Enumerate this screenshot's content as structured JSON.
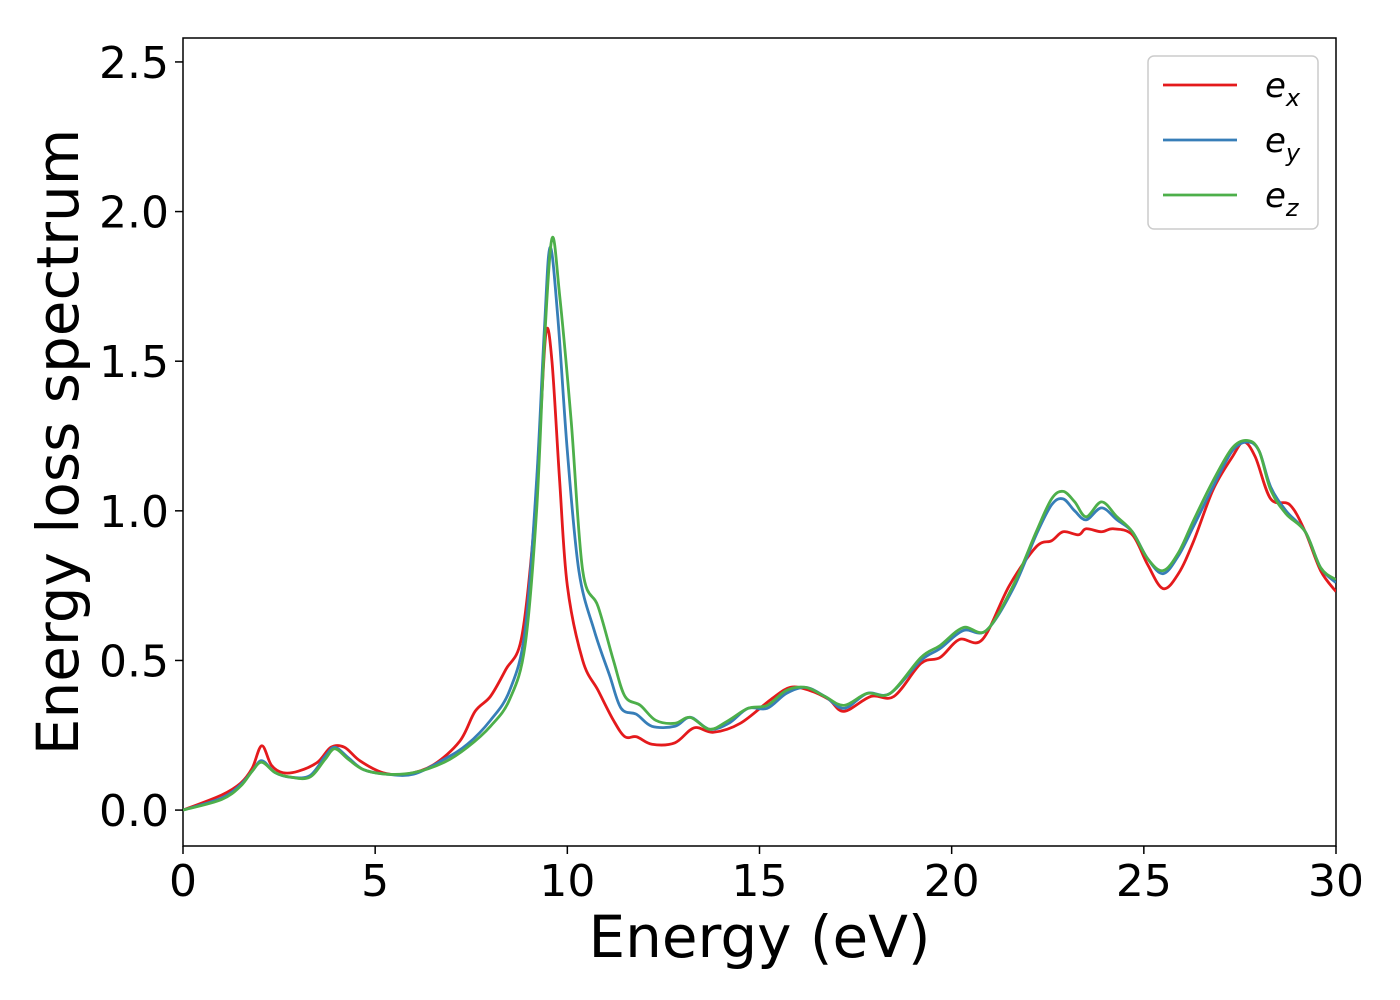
{
  "chart_data": {
    "type": "line",
    "xlabel": "Energy (eV)",
    "ylabel": "Energy loss spectrum",
    "xlim": [
      0,
      30
    ],
    "ylim": [
      -0.12,
      2.58
    ],
    "xticks": [
      0,
      5,
      10,
      15,
      20,
      25,
      30
    ],
    "yticks": [
      0.0,
      0.5,
      1.0,
      1.5,
      2.0,
      2.5
    ],
    "xtick_labels": [
      "0",
      "5",
      "10",
      "15",
      "20",
      "25",
      "30"
    ],
    "ytick_labels": [
      "0.0",
      "0.5",
      "1.0",
      "1.5",
      "2.0",
      "2.5"
    ],
    "grid": false,
    "legend_position": "top-right",
    "series": [
      {
        "name": "e_x",
        "label_base": "e",
        "label_sub": "x",
        "color": "#e41a1c",
        "points": [
          [
            0,
            0
          ],
          [
            1,
            0.05
          ],
          [
            1.5,
            0.09
          ],
          [
            1.8,
            0.14
          ],
          [
            2.05,
            0.215
          ],
          [
            2.3,
            0.15
          ],
          [
            2.6,
            0.125
          ],
          [
            3,
            0.13
          ],
          [
            3.5,
            0.16
          ],
          [
            3.85,
            0.21
          ],
          [
            4.2,
            0.21
          ],
          [
            4.6,
            0.165
          ],
          [
            5.2,
            0.125
          ],
          [
            5.8,
            0.12
          ],
          [
            6.5,
            0.15
          ],
          [
            7.2,
            0.23
          ],
          [
            7.6,
            0.33
          ],
          [
            8,
            0.38
          ],
          [
            8.4,
            0.47
          ],
          [
            8.8,
            0.57
          ],
          [
            9.1,
            0.9
          ],
          [
            9.3,
            1.3
          ],
          [
            9.45,
            1.6
          ],
          [
            9.6,
            1.5
          ],
          [
            9.8,
            1.1
          ],
          [
            10,
            0.75
          ],
          [
            10.4,
            0.5
          ],
          [
            10.8,
            0.4
          ],
          [
            11.2,
            0.3
          ],
          [
            11.5,
            0.245
          ],
          [
            11.8,
            0.245
          ],
          [
            12.2,
            0.22
          ],
          [
            12.8,
            0.225
          ],
          [
            13.3,
            0.275
          ],
          [
            13.8,
            0.26
          ],
          [
            14.5,
            0.29
          ],
          [
            15.3,
            0.37
          ],
          [
            15.8,
            0.41
          ],
          [
            16.3,
            0.4
          ],
          [
            16.8,
            0.37
          ],
          [
            17.2,
            0.33
          ],
          [
            17.9,
            0.38
          ],
          [
            18.5,
            0.38
          ],
          [
            19.2,
            0.49
          ],
          [
            19.7,
            0.51
          ],
          [
            20.2,
            0.57
          ],
          [
            20.8,
            0.57
          ],
          [
            21.5,
            0.75
          ],
          [
            22.2,
            0.88
          ],
          [
            22.6,
            0.9
          ],
          [
            22.9,
            0.93
          ],
          [
            23.3,
            0.92
          ],
          [
            23.5,
            0.94
          ],
          [
            23.9,
            0.93
          ],
          [
            24.2,
            0.94
          ],
          [
            24.7,
            0.92
          ],
          [
            25.1,
            0.82
          ],
          [
            25.5,
            0.74
          ],
          [
            25.9,
            0.79
          ],
          [
            26.3,
            0.9
          ],
          [
            26.8,
            1.07
          ],
          [
            27.3,
            1.18
          ],
          [
            27.6,
            1.23
          ],
          [
            27.9,
            1.18
          ],
          [
            28.3,
            1.04
          ],
          [
            28.8,
            1.02
          ],
          [
            29.2,
            0.93
          ],
          [
            29.6,
            0.8
          ],
          [
            30,
            0.73
          ]
        ]
      },
      {
        "name": "e_y",
        "label_base": "e",
        "label_sub": "y",
        "color": "#377eb8",
        "points": [
          [
            0,
            0
          ],
          [
            1,
            0.04
          ],
          [
            1.5,
            0.085
          ],
          [
            1.8,
            0.13
          ],
          [
            2.05,
            0.165
          ],
          [
            2.4,
            0.125
          ],
          [
            2.8,
            0.11
          ],
          [
            3.3,
            0.115
          ],
          [
            3.7,
            0.18
          ],
          [
            3.95,
            0.21
          ],
          [
            4.3,
            0.175
          ],
          [
            4.7,
            0.135
          ],
          [
            5.3,
            0.12
          ],
          [
            6,
            0.12
          ],
          [
            6.8,
            0.17
          ],
          [
            7.4,
            0.22
          ],
          [
            8,
            0.3
          ],
          [
            8.5,
            0.4
          ],
          [
            8.9,
            0.6
          ],
          [
            9.2,
            1.1
          ],
          [
            9.4,
            1.6
          ],
          [
            9.55,
            1.88
          ],
          [
            9.75,
            1.65
          ],
          [
            10,
            1.2
          ],
          [
            10.3,
            0.8
          ],
          [
            10.7,
            0.6
          ],
          [
            11.1,
            0.45
          ],
          [
            11.4,
            0.34
          ],
          [
            11.8,
            0.32
          ],
          [
            12.2,
            0.28
          ],
          [
            12.8,
            0.28
          ],
          [
            13.2,
            0.31
          ],
          [
            13.7,
            0.27
          ],
          [
            14.2,
            0.29
          ],
          [
            14.7,
            0.34
          ],
          [
            15.2,
            0.34
          ],
          [
            15.7,
            0.39
          ],
          [
            16.2,
            0.41
          ],
          [
            16.7,
            0.38
          ],
          [
            17.2,
            0.34
          ],
          [
            17.8,
            0.39
          ],
          [
            18.4,
            0.39
          ],
          [
            19.2,
            0.5
          ],
          [
            19.7,
            0.54
          ],
          [
            20.3,
            0.6
          ],
          [
            20.9,
            0.6
          ],
          [
            21.6,
            0.74
          ],
          [
            22.2,
            0.92
          ],
          [
            22.6,
            1.02
          ],
          [
            22.9,
            1.04
          ],
          [
            23.2,
            1.0
          ],
          [
            23.5,
            0.97
          ],
          [
            23.9,
            1.01
          ],
          [
            24.3,
            0.97
          ],
          [
            24.7,
            0.93
          ],
          [
            25.1,
            0.84
          ],
          [
            25.5,
            0.79
          ],
          [
            25.9,
            0.85
          ],
          [
            26.3,
            0.95
          ],
          [
            26.8,
            1.08
          ],
          [
            27.3,
            1.2
          ],
          [
            27.7,
            1.23
          ],
          [
            28,
            1.2
          ],
          [
            28.3,
            1.08
          ],
          [
            28.7,
            1.0
          ],
          [
            29.2,
            0.93
          ],
          [
            29.6,
            0.81
          ],
          [
            30,
            0.76
          ]
        ]
      },
      {
        "name": "e_z",
        "label_base": "e",
        "label_sub": "z",
        "color": "#4daf4a",
        "points": [
          [
            0,
            0
          ],
          [
            1,
            0.035
          ],
          [
            1.5,
            0.08
          ],
          [
            1.8,
            0.13
          ],
          [
            2.05,
            0.16
          ],
          [
            2.4,
            0.125
          ],
          [
            2.8,
            0.11
          ],
          [
            3.3,
            0.11
          ],
          [
            3.7,
            0.17
          ],
          [
            3.95,
            0.205
          ],
          [
            4.3,
            0.17
          ],
          [
            4.7,
            0.135
          ],
          [
            5.3,
            0.12
          ],
          [
            6,
            0.125
          ],
          [
            6.8,
            0.16
          ],
          [
            7.4,
            0.21
          ],
          [
            8,
            0.28
          ],
          [
            8.5,
            0.37
          ],
          [
            8.9,
            0.55
          ],
          [
            9.2,
            1.0
          ],
          [
            9.4,
            1.55
          ],
          [
            9.6,
            1.91
          ],
          [
            9.8,
            1.72
          ],
          [
            10.1,
            1.3
          ],
          [
            10.4,
            0.8
          ],
          [
            10.8,
            0.68
          ],
          [
            11.2,
            0.5
          ],
          [
            11.5,
            0.38
          ],
          [
            11.9,
            0.35
          ],
          [
            12.3,
            0.3
          ],
          [
            12.8,
            0.29
          ],
          [
            13.2,
            0.31
          ],
          [
            13.7,
            0.27
          ],
          [
            14.2,
            0.3
          ],
          [
            14.7,
            0.34
          ],
          [
            15.2,
            0.35
          ],
          [
            15.7,
            0.4
          ],
          [
            16.2,
            0.41
          ],
          [
            16.7,
            0.38
          ],
          [
            17.2,
            0.35
          ],
          [
            17.8,
            0.39
          ],
          [
            18.4,
            0.39
          ],
          [
            19.2,
            0.51
          ],
          [
            19.7,
            0.55
          ],
          [
            20.3,
            0.61
          ],
          [
            20.9,
            0.6
          ],
          [
            21.6,
            0.75
          ],
          [
            22.2,
            0.93
          ],
          [
            22.6,
            1.04
          ],
          [
            22.9,
            1.065
          ],
          [
            23.2,
            1.03
          ],
          [
            23.5,
            0.98
          ],
          [
            23.9,
            1.03
          ],
          [
            24.3,
            0.98
          ],
          [
            24.7,
            0.93
          ],
          [
            25.1,
            0.84
          ],
          [
            25.5,
            0.8
          ],
          [
            25.9,
            0.86
          ],
          [
            26.3,
            0.97
          ],
          [
            26.8,
            1.1
          ],
          [
            27.3,
            1.21
          ],
          [
            27.7,
            1.235
          ],
          [
            28,
            1.2
          ],
          [
            28.3,
            1.07
          ],
          [
            28.7,
            0.99
          ],
          [
            29.2,
            0.93
          ],
          [
            29.6,
            0.81
          ],
          [
            30,
            0.77
          ]
        ]
      }
    ]
  }
}
